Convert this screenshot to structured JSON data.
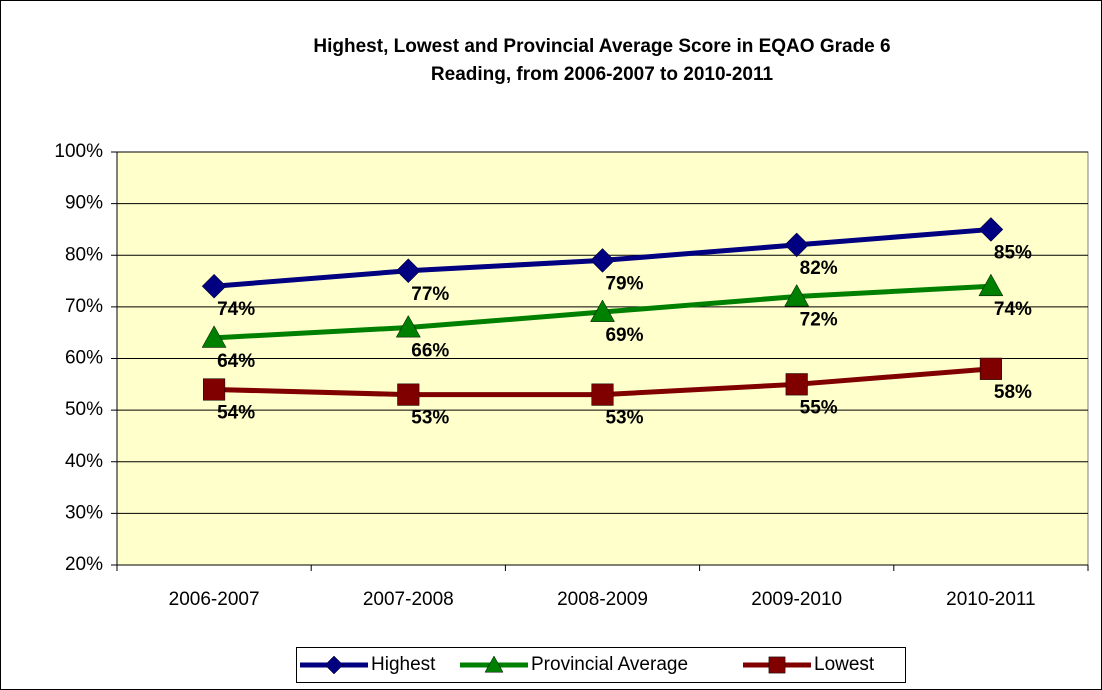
{
  "chart_data": {
    "type": "line",
    "title": [
      "Highest, Lowest and Provincial Average Score in EQAO Grade 6",
      "Reading, from 2006-2007 to 2010-2011"
    ],
    "categories": [
      "2006-2007",
      "2007-2008",
      "2008-2009",
      "2009-2010",
      "2010-2011"
    ],
    "series": [
      {
        "name": "Highest",
        "color": "#000080",
        "marker": "diamond",
        "values": [
          74,
          77,
          79,
          82,
          85
        ],
        "value_labels": [
          "74%",
          "77%",
          "79%",
          "82%",
          "85%"
        ]
      },
      {
        "name": "Provincial Average",
        "color": "#008000",
        "marker": "triangle",
        "values": [
          64,
          66,
          69,
          72,
          74
        ],
        "value_labels": [
          "64%",
          "66%",
          "69%",
          "72%",
          "74%"
        ]
      },
      {
        "name": "Lowest",
        "color": "#800000",
        "marker": "square",
        "values": [
          54,
          53,
          53,
          55,
          58
        ],
        "value_labels": [
          "54%",
          "53%",
          "53%",
          "55%",
          "58%"
        ]
      }
    ],
    "ylim": [
      20,
      100
    ],
    "yticks": [
      {
        "value": 20,
        "label": "20%"
      },
      {
        "value": 30,
        "label": "30%"
      },
      {
        "value": 40,
        "label": "40%"
      },
      {
        "value": 50,
        "label": "50%"
      },
      {
        "value": 60,
        "label": "60%"
      },
      {
        "value": 70,
        "label": "70%"
      },
      {
        "value": 80,
        "label": "80%"
      },
      {
        "value": 90,
        "label": "90%"
      },
      {
        "value": 100,
        "label": "100%"
      }
    ],
    "grid": true,
    "legend": "bottom",
    "plot_background": "#ffffcc"
  }
}
